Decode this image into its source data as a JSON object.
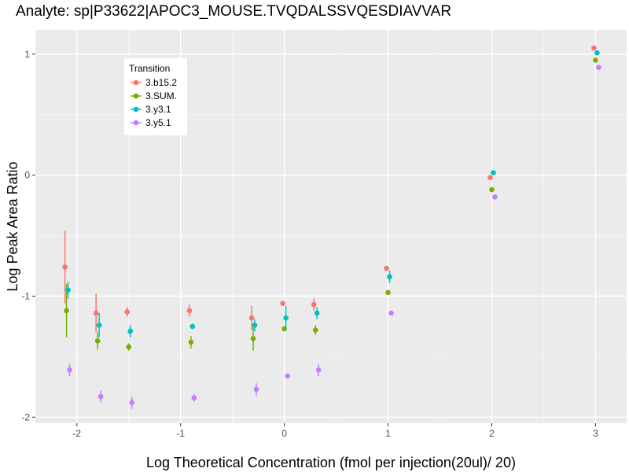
{
  "chart_data": {
    "type": "scatter",
    "title": "Analyte: sp|P33622|APOC3_MOUSE.TVQDALSSVQESDIAVVAR",
    "xlabel": "Log Theoretical Concentration (fmol per injection(20ul)/ 20)",
    "ylabel": "Log Peak Area Ratio",
    "xlim": [
      -2.4,
      3.3
    ],
    "ylim": [
      -2.05,
      1.2
    ],
    "x_ticks": [
      -2,
      -1,
      0,
      1,
      2,
      3
    ],
    "y_ticks": [
      -2,
      -1,
      0,
      1
    ],
    "x_tick_labels": [
      "-2",
      "-1",
      "0",
      "1",
      "2",
      "3"
    ],
    "y_tick_labels": [
      "-2",
      "-1",
      "0",
      "1"
    ],
    "grid": true,
    "legend_title": "Transition",
    "legend_position": "top-left",
    "x": [
      -2.1,
      -1.8,
      -1.5,
      -0.9,
      -0.3,
      0,
      0.3,
      1,
      2,
      3
    ],
    "series": [
      {
        "name": "3.b15.2",
        "color": "#F8766D",
        "y": [
          -0.76,
          -1.14,
          -1.13,
          -1.12,
          -1.18,
          -1.06,
          -1.07,
          -0.77,
          -0.02,
          1.05
        ],
        "err": [
          0.3,
          0.16,
          0.04,
          0.05,
          0.1,
          0,
          0.05,
          0,
          0,
          0
        ]
      },
      {
        "name": "3.SUM.",
        "color": "#7CAE00",
        "y": [
          -1.12,
          -1.37,
          -1.42,
          -1.38,
          -1.35,
          -1.27,
          -1.28,
          -0.97,
          -0.12,
          0.95
        ],
        "err": [
          0.22,
          0.07,
          0.03,
          0.05,
          0.1,
          0,
          0.04,
          0.02,
          0,
          0
        ]
      },
      {
        "name": "3.y3.1",
        "color": "#00BFC4",
        "y": [
          -0.95,
          -1.24,
          -1.29,
          -1.25,
          -1.24,
          -1.18,
          -1.14,
          -0.84,
          0.02,
          1.01
        ],
        "err": [
          0.07,
          0.1,
          0.05,
          0,
          0.05,
          0.1,
          0.05,
          0.05,
          0,
          0
        ]
      },
      {
        "name": "3.y5.1",
        "color": "#C77CFF",
        "y": [
          -1.61,
          -1.83,
          -1.88,
          -1.84,
          -1.77,
          -1.66,
          -1.61,
          -1.14,
          -0.18,
          0.89
        ],
        "err": [
          0.05,
          0.05,
          0.05,
          0.03,
          0.05,
          0,
          0.05,
          0,
          0,
          0
        ]
      }
    ],
    "x_offsets": [
      -0.015,
      0,
      0.015,
      0.03
    ]
  }
}
